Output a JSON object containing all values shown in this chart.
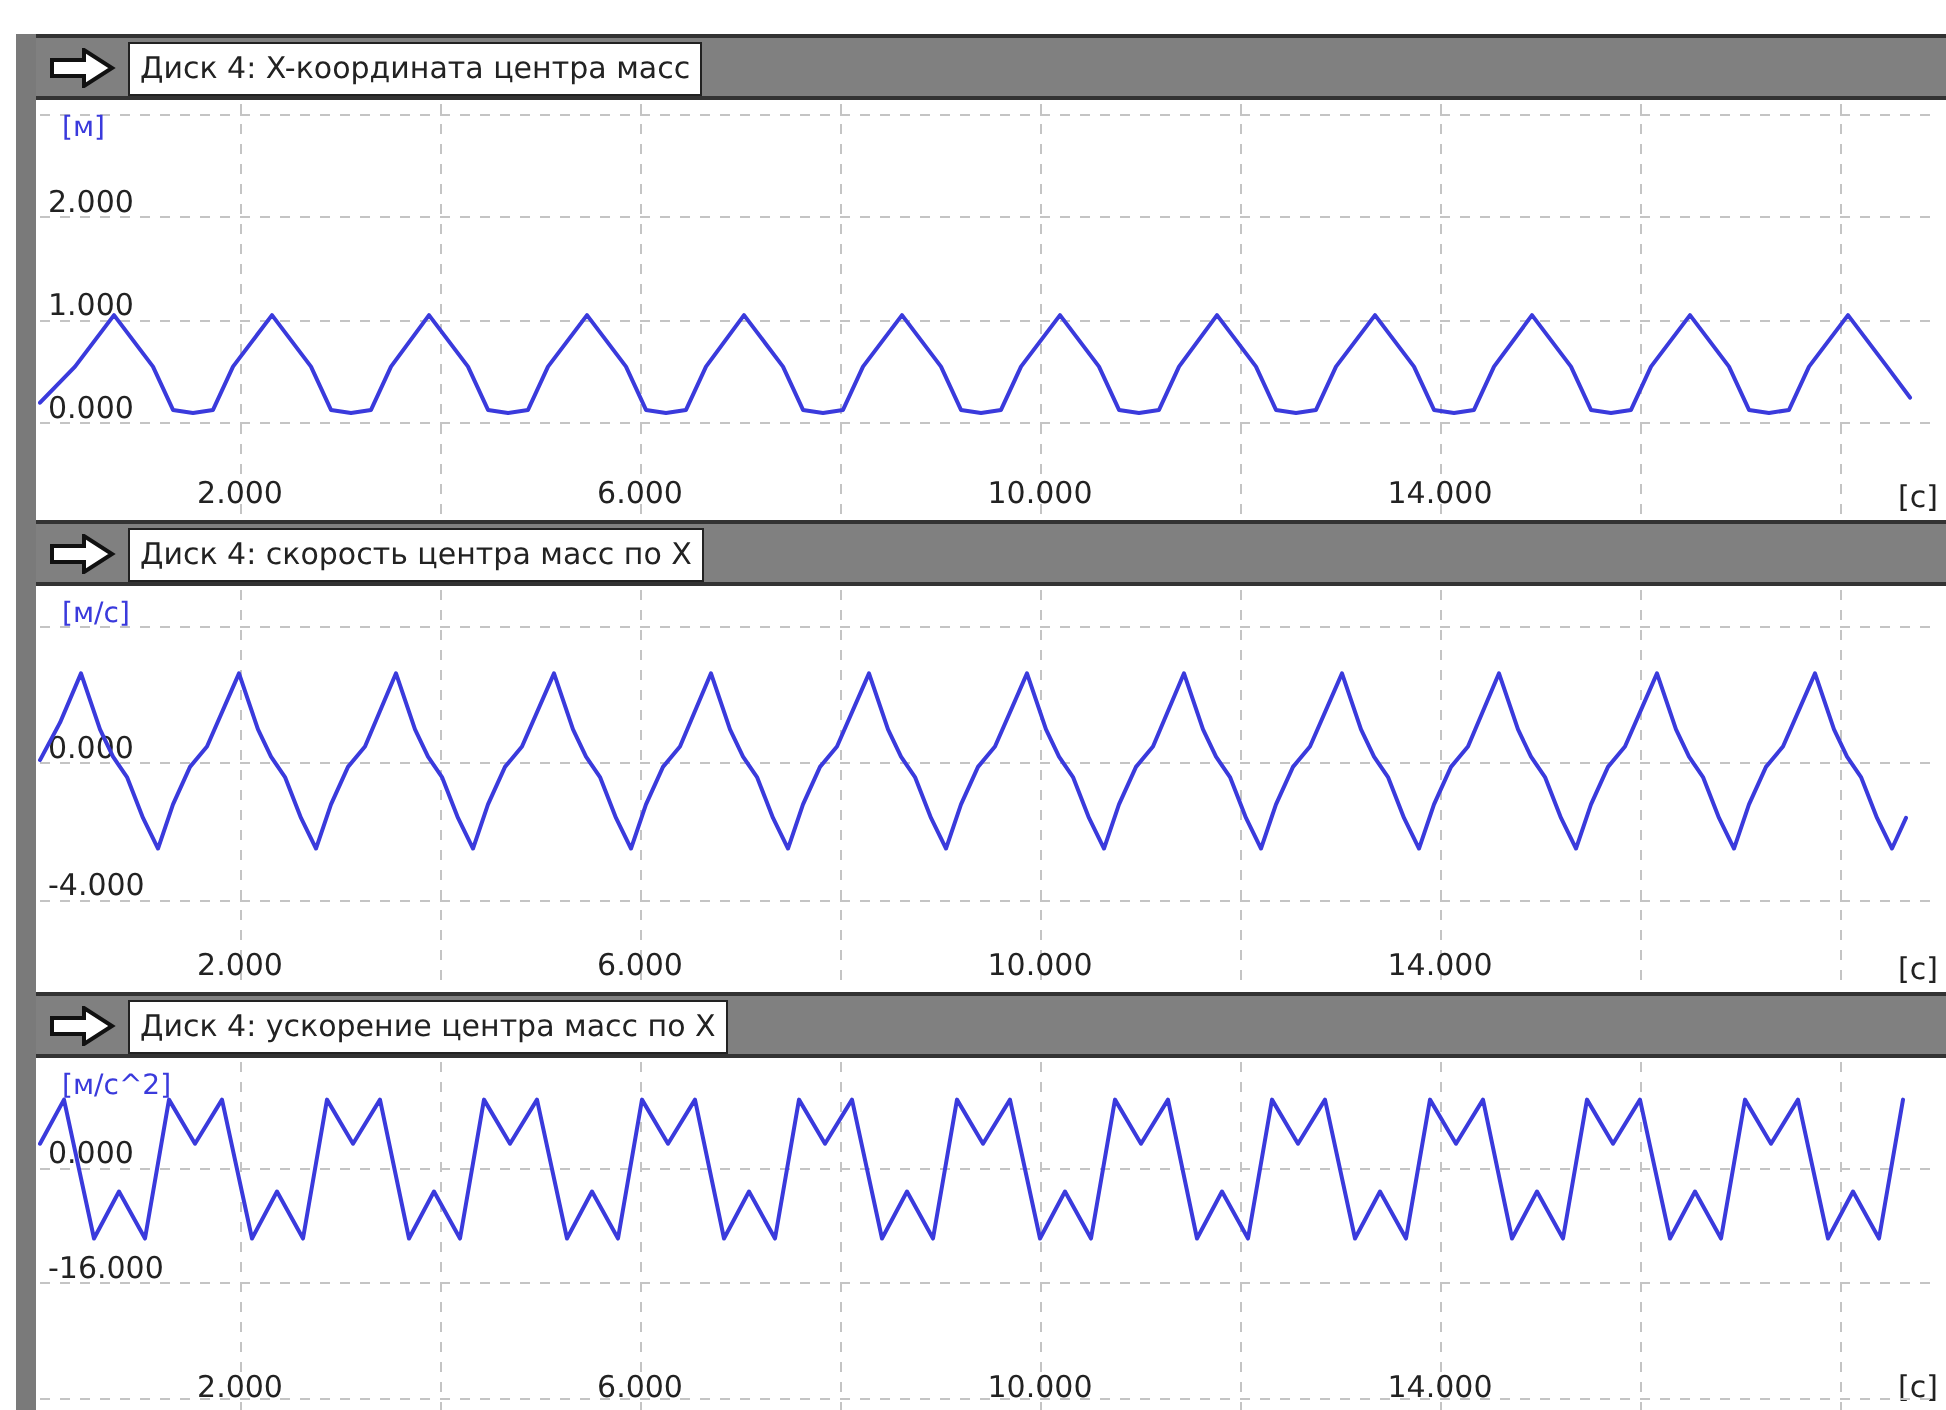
{
  "chart_data": [
    {
      "type": "line",
      "title": "Диск 4: X-координата центра масс",
      "ylabel": "[м]",
      "xlabel": "[с]",
      "color": "#3a3adc",
      "marker": "none",
      "grid": true,
      "xlim": [
        0,
        19
      ],
      "xticks": [
        {
          "value": 2,
          "label": "2.000"
        },
        {
          "value": 4,
          "label": null
        },
        {
          "value": 6,
          "label": "6.000"
        },
        {
          "value": 8,
          "label": null
        },
        {
          "value": 10,
          "label": "10.000"
        },
        {
          "value": 12,
          "label": null
        },
        {
          "value": 14,
          "label": "14.000"
        },
        {
          "value": 16,
          "label": null
        },
        {
          "value": 18,
          "label": null
        }
      ],
      "ylim": [
        -0.9,
        3.1
      ],
      "yticks": [
        {
          "value": 0,
          "label": "0.000"
        },
        {
          "value": 1,
          "label": "1.000"
        },
        {
          "value": 2,
          "label": "2.000"
        },
        {
          "value": 3,
          "label": null
        }
      ],
      "x": [
        0,
        0.35,
        0.74,
        1.13,
        1.33,
        1.53,
        1.73,
        1.93,
        2.32,
        2.71,
        2.91,
        3.11,
        3.31,
        3.51,
        3.89,
        4.28,
        4.48,
        4.68,
        4.88,
        5.08,
        5.47,
        5.86,
        6.06,
        6.26,
        6.46,
        6.66,
        7.04,
        7.43,
        7.63,
        7.83,
        8.03,
        8.23,
        8.62,
        9.01,
        9.21,
        9.41,
        9.61,
        9.81,
        10.2,
        10.59,
        10.79,
        10.99,
        11.19,
        11.39,
        11.77,
        12.16,
        12.36,
        12.56,
        12.76,
        12.96,
        13.35,
        13.74,
        13.94,
        14.14,
        14.34,
        14.54,
        14.92,
        15.31,
        15.51,
        15.71,
        15.91,
        16.11,
        16.5,
        16.89,
        17.09,
        17.29,
        17.49,
        17.69,
        18.08,
        18.47,
        18.7
      ],
      "values": [
        0.2,
        0.55,
        1.05,
        0.55,
        0.13,
        0.1,
        0.13,
        0.55,
        1.05,
        0.55,
        0.13,
        0.1,
        0.13,
        0.55,
        1.05,
        0.55,
        0.13,
        0.1,
        0.13,
        0.55,
        1.05,
        0.55,
        0.13,
        0.1,
        0.13,
        0.55,
        1.05,
        0.55,
        0.13,
        0.1,
        0.13,
        0.55,
        1.05,
        0.55,
        0.13,
        0.1,
        0.13,
        0.55,
        1.05,
        0.55,
        0.13,
        0.1,
        0.13,
        0.55,
        1.05,
        0.55,
        0.13,
        0.1,
        0.13,
        0.55,
        1.05,
        0.55,
        0.13,
        0.1,
        0.13,
        0.55,
        1.05,
        0.55,
        0.13,
        0.1,
        0.13,
        0.55,
        1.05,
        0.55,
        0.13,
        0.1,
        0.13,
        0.55,
        1.05,
        0.55,
        0.25
      ]
    },
    {
      "type": "line",
      "title": "Диск 4: скорость центра масс по X",
      "ylabel": "[м/с]",
      "xlabel": "[с]",
      "color": "#3a3adc",
      "marker": "none",
      "grid": true,
      "xlim": [
        0,
        19
      ],
      "xticks": [
        {
          "value": 2,
          "label": "2.000"
        },
        {
          "value": 4,
          "label": null
        },
        {
          "value": 6,
          "label": "6.000"
        },
        {
          "value": 8,
          "label": null
        },
        {
          "value": 10,
          "label": "10.000"
        },
        {
          "value": 12,
          "label": null
        },
        {
          "value": 14,
          "label": "14.000"
        },
        {
          "value": 16,
          "label": null
        },
        {
          "value": 18,
          "label": null
        }
      ],
      "ylim": [
        -6.6,
        5.1
      ],
      "yticks": [
        {
          "value": -4,
          "label": "-4.000"
        },
        {
          "value": 0,
          "label": "0.000"
        },
        {
          "value": 4,
          "label": null
        }
      ],
      "x": [
        0,
        0.2,
        0.41,
        0.6,
        0.73,
        0.87,
        1.03,
        1.18,
        1.33,
        1.5,
        1.67,
        1.99,
        2.18,
        2.31,
        2.45,
        2.61,
        2.76,
        2.91,
        3.08,
        3.25,
        3.56,
        3.75,
        3.88,
        4.02,
        4.18,
        4.33,
        4.48,
        4.65,
        4.82,
        5.14,
        5.33,
        5.46,
        5.6,
        5.76,
        5.91,
        6.06,
        6.23,
        6.4,
        6.71,
        6.9,
        7.03,
        7.17,
        7.33,
        7.48,
        7.63,
        7.8,
        7.97,
        8.29,
        8.48,
        8.61,
        8.75,
        8.91,
        9.06,
        9.21,
        9.38,
        9.55,
        9.87,
        10.06,
        10.19,
        10.33,
        10.49,
        10.64,
        10.79,
        10.96,
        11.13,
        11.44,
        11.63,
        11.76,
        11.9,
        12.06,
        12.21,
        12.36,
        12.53,
        12.7,
        13.02,
        13.21,
        13.34,
        13.48,
        13.64,
        13.79,
        13.94,
        14.11,
        14.28,
        14.59,
        14.78,
        14.91,
        15.05,
        15.21,
        15.36,
        15.51,
        15.68,
        15.85,
        16.17,
        16.36,
        16.49,
        16.63,
        16.79,
        16.94,
        17.09,
        17.26,
        17.43,
        17.75,
        17.94,
        18.07,
        18.21,
        18.37,
        18.52,
        18.66
      ],
      "values": [
        0.1,
        1.2,
        2.65,
        1.0,
        0.2,
        -0.4,
        -1.6,
        -2.5,
        -1.2,
        -0.1,
        0.5,
        2.65,
        1.0,
        0.2,
        -0.4,
        -1.6,
        -2.5,
        -1.2,
        -0.1,
        0.5,
        2.65,
        1.0,
        0.2,
        -0.4,
        -1.6,
        -2.5,
        -1.2,
        -0.1,
        0.5,
        2.65,
        1.0,
        0.2,
        -0.4,
        -1.6,
        -2.5,
        -1.2,
        -0.1,
        0.5,
        2.65,
        1.0,
        0.2,
        -0.4,
        -1.6,
        -2.5,
        -1.2,
        -0.1,
        0.5,
        2.65,
        1.0,
        0.2,
        -0.4,
        -1.6,
        -2.5,
        -1.2,
        -0.1,
        0.5,
        2.65,
        1.0,
        0.2,
        -0.4,
        -1.6,
        -2.5,
        -1.2,
        -0.1,
        0.5,
        2.65,
        1.0,
        0.2,
        -0.4,
        -1.6,
        -2.5,
        -1.2,
        -0.1,
        0.5,
        2.65,
        1.0,
        0.2,
        -0.4,
        -1.6,
        -2.5,
        -1.2,
        -0.1,
        0.5,
        2.65,
        1.0,
        0.2,
        -0.4,
        -1.6,
        -2.5,
        -1.2,
        -0.1,
        0.5,
        2.65,
        1.0,
        0.2,
        -0.4,
        -1.6,
        -2.5,
        -1.2,
        -0.1,
        0.5,
        2.65,
        1.0,
        0.2,
        -0.4,
        -1.6,
        -2.5,
        -1.6
      ]
    },
    {
      "type": "line",
      "title": "Диск 4: ускорение центра масс по X",
      "ylabel": "[м/с^2]",
      "xlabel": "[с]",
      "color": "#3a3adc",
      "marker": "none",
      "grid": true,
      "xlim": [
        0,
        19
      ],
      "xticks": [
        {
          "value": 2,
          "label": "2.000"
        },
        {
          "value": 4,
          "label": null
        },
        {
          "value": 6,
          "label": "6.000"
        },
        {
          "value": 8,
          "label": null
        },
        {
          "value": 10,
          "label": "10.000"
        },
        {
          "value": 12,
          "label": null
        },
        {
          "value": 14,
          "label": "14.000"
        },
        {
          "value": 16,
          "label": null
        },
        {
          "value": 18,
          "label": null
        }
      ],
      "ylim": [
        -33.5,
        14.6
      ],
      "yticks": [
        {
          "value": -32,
          "label": null
        },
        {
          "value": -16,
          "label": "-16.000"
        },
        {
          "value": 0,
          "label": "0.000"
        }
      ],
      "x": [
        0,
        0.24,
        0.54,
        0.79,
        1.05,
        1.29,
        1.55,
        1.82,
        2.12,
        2.37,
        2.63,
        2.87,
        3.13,
        3.4,
        3.69,
        3.94,
        4.2,
        4.44,
        4.7,
        4.97,
        5.27,
        5.52,
        5.78,
        6.02,
        6.28,
        6.55,
        6.84,
        7.09,
        7.35,
        7.59,
        7.85,
        8.12,
        8.42,
        8.67,
        8.93,
        9.17,
        9.43,
        9.7,
        10.0,
        10.25,
        10.51,
        10.75,
        11.01,
        11.28,
        11.57,
        11.82,
        12.08,
        12.32,
        12.58,
        12.85,
        13.15,
        13.4,
        13.66,
        13.9,
        14.16,
        14.43,
        14.72,
        14.97,
        15.23,
        15.47,
        15.73,
        16.0,
        16.3,
        16.55,
        16.81,
        17.05,
        17.31,
        17.58,
        17.88,
        18.13,
        18.39,
        18.63
      ],
      "values": [
        3.3,
        9.4,
        -9.8,
        -3.3,
        -9.8,
        9.4,
        3.3,
        9.4,
        -9.8,
        -3.3,
        -9.8,
        9.4,
        3.3,
        9.4,
        -9.8,
        -3.3,
        -9.8,
        9.4,
        3.3,
        9.4,
        -9.8,
        -3.3,
        -9.8,
        9.4,
        3.3,
        9.4,
        -9.8,
        -3.3,
        -9.8,
        9.4,
        3.3,
        9.4,
        -9.8,
        -3.3,
        -9.8,
        9.4,
        3.3,
        9.4,
        -9.8,
        -3.3,
        -9.8,
        9.4,
        3.3,
        9.4,
        -9.8,
        -3.3,
        -9.8,
        9.4,
        3.3,
        9.4,
        -9.8,
        -3.3,
        -9.8,
        9.4,
        3.3,
        9.4,
        -9.8,
        -3.3,
        -9.8,
        9.4,
        3.3,
        9.4,
        -9.8,
        -3.3,
        -9.8,
        9.4,
        3.3,
        9.4,
        -9.8,
        -3.3,
        -9.8,
        9.4
      ]
    }
  ]
}
